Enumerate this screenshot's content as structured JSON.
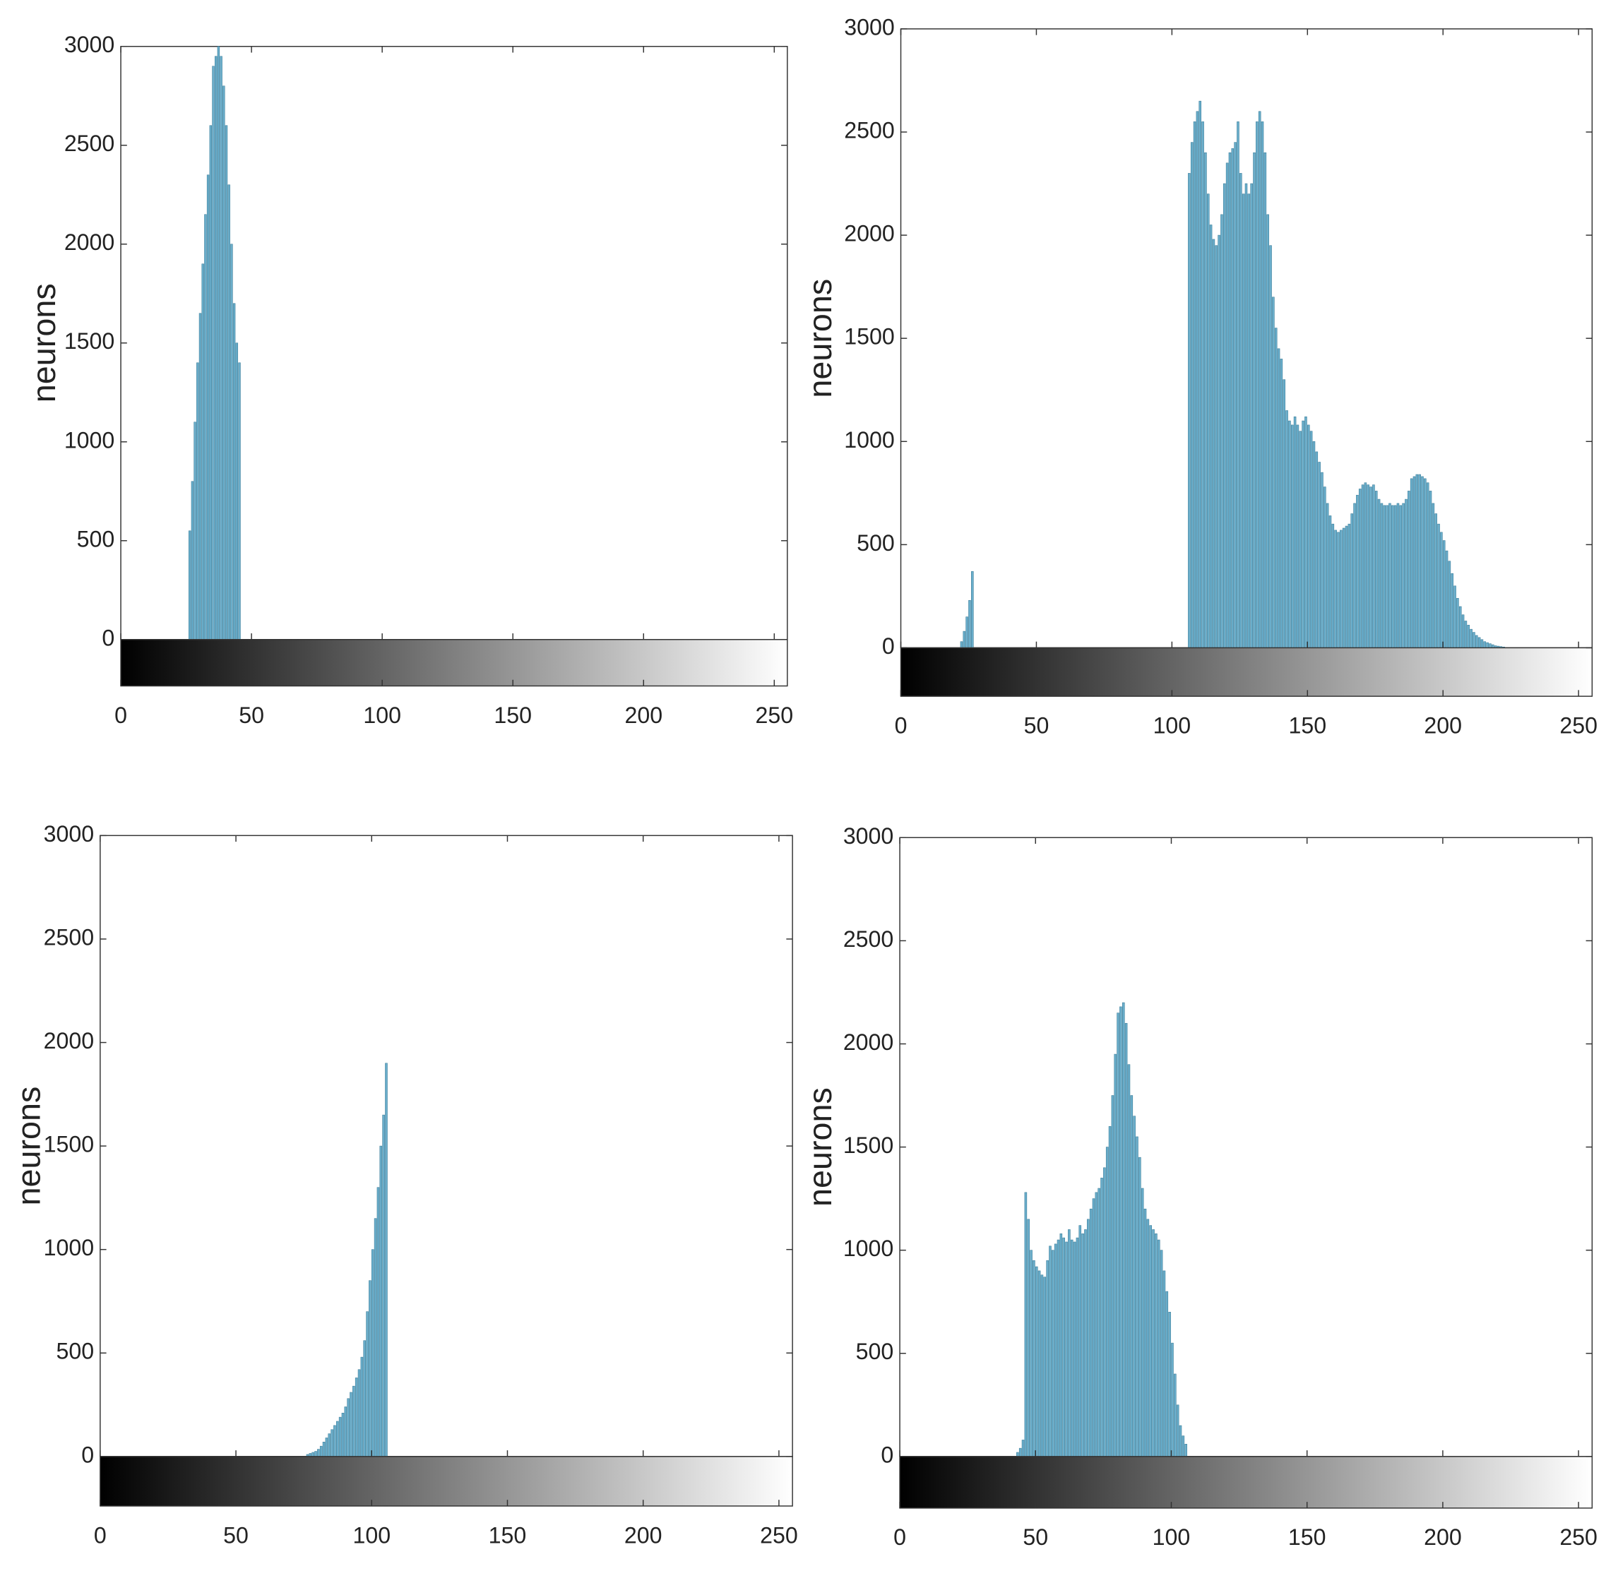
{
  "chart_data": [
    {
      "type": "histogram",
      "ylabel": "neurons",
      "color": "#6aaecb",
      "bins": [
        26,
        27,
        28,
        29,
        30,
        31,
        32,
        33,
        34,
        35,
        36,
        37,
        38,
        39,
        40,
        41,
        42,
        43,
        44,
        45,
        46
      ],
      "values": [
        550,
        800,
        1100,
        1400,
        1650,
        1900,
        2150,
        2350,
        2600,
        2900,
        2950,
        3000,
        2950,
        2800,
        2600,
        2300,
        2000,
        1700,
        1500,
        1400
      ],
      "xlim": [
        0,
        255
      ],
      "xticks": [
        0,
        50,
        100,
        150,
        200,
        250
      ],
      "ylim": [
        0,
        3000
      ],
      "yticks": [
        0,
        500,
        1000,
        1500,
        2000,
        2500,
        3000
      ]
    },
    {
      "type": "histogram",
      "ylabel": "neurons",
      "color": "#6aaecb",
      "bins": [
        22,
        23,
        24,
        25,
        26,
        27,
        106,
        107,
        108,
        109,
        110,
        111,
        112,
        113,
        114,
        115,
        116,
        117,
        118,
        119,
        120,
        121,
        122,
        123,
        124,
        125,
        126,
        127,
        128,
        129,
        130,
        131,
        132,
        133,
        134,
        135,
        136,
        137,
        138,
        139,
        140,
        141,
        142,
        143,
        144,
        145,
        146,
        147,
        148,
        149,
        150,
        151,
        152,
        153,
        154,
        155,
        156,
        157,
        158,
        159,
        160,
        161,
        162,
        163,
        164,
        165,
        166,
        167,
        168,
        169,
        170,
        171,
        172,
        173,
        174,
        175,
        176,
        177,
        178,
        179,
        180,
        181,
        182,
        183,
        184,
        185,
        186,
        187,
        188,
        189,
        190,
        191,
        192,
        193,
        194,
        195,
        196,
        197,
        198,
        199,
        200,
        201,
        202,
        203,
        204,
        205,
        206,
        207,
        208,
        209,
        210,
        211,
        212,
        213,
        214,
        215,
        216,
        217,
        218,
        219,
        220,
        221,
        222,
        223
      ],
      "values": [
        30,
        80,
        150,
        230,
        370,
        0,
        2300,
        2450,
        2550,
        2600,
        2650,
        2550,
        2400,
        2200,
        2050,
        1980,
        1950,
        2000,
        2100,
        2250,
        2350,
        2400,
        2420,
        2450,
        2550,
        2300,
        2200,
        2250,
        2200,
        2250,
        2400,
        2550,
        2600,
        2550,
        2400,
        2100,
        1950,
        1700,
        1550,
        1450,
        1400,
        1300,
        1150,
        1100,
        1080,
        1120,
        1080,
        1050,
        1100,
        1120,
        1080,
        1050,
        1000,
        950,
        900,
        850,
        780,
        700,
        640,
        600,
        570,
        560,
        570,
        580,
        590,
        600,
        650,
        700,
        740,
        770,
        790,
        800,
        790,
        780,
        790,
        760,
        720,
        700,
        690,
        690,
        700,
        690,
        690,
        700,
        690,
        700,
        720,
        760,
        820,
        830,
        840,
        840,
        830,
        820,
        800,
        760,
        700,
        650,
        600,
        560,
        520,
        470,
        420,
        360,
        300,
        240,
        200,
        160,
        130,
        110,
        90,
        75,
        60,
        50,
        40,
        30,
        25,
        20,
        15,
        10,
        8,
        6,
        4
      ],
      "xlim": [
        0,
        255
      ],
      "xticks": [
        0,
        50,
        100,
        150,
        200,
        250
      ],
      "ylim": [
        0,
        3000
      ],
      "yticks": [
        0,
        500,
        1000,
        1500,
        2000,
        2500,
        3000
      ]
    },
    {
      "type": "histogram",
      "ylabel": "neurons",
      "color": "#6aaecb",
      "bins": [
        76,
        77,
        78,
        79,
        80,
        81,
        82,
        83,
        84,
        85,
        86,
        87,
        88,
        89,
        90,
        91,
        92,
        93,
        94,
        95,
        96,
        97,
        98,
        99,
        100,
        101,
        102,
        103,
        104,
        105,
        106
      ],
      "values": [
        10,
        15,
        20,
        25,
        35,
        50,
        70,
        90,
        110,
        130,
        150,
        170,
        190,
        210,
        240,
        280,
        310,
        340,
        380,
        420,
        480,
        560,
        700,
        850,
        1000,
        1150,
        1300,
        1500,
        1650,
        1900
      ],
      "xlim": [
        0,
        255
      ],
      "xticks": [
        0,
        50,
        100,
        150,
        200,
        250
      ],
      "ylim": [
        0,
        3000
      ],
      "yticks": [
        0,
        500,
        1000,
        1500,
        2000,
        2500,
        3000
      ]
    },
    {
      "type": "histogram",
      "ylabel": "neurons",
      "color": "#6aaecb",
      "bins": [
        43,
        44,
        45,
        46,
        47,
        48,
        49,
        50,
        51,
        52,
        53,
        54,
        55,
        56,
        57,
        58,
        59,
        60,
        61,
        62,
        63,
        64,
        65,
        66,
        67,
        68,
        69,
        70,
        71,
        72,
        73,
        74,
        75,
        76,
        77,
        78,
        79,
        80,
        81,
        82,
        83,
        84,
        85,
        86,
        87,
        88,
        89,
        90,
        91,
        92,
        93,
        94,
        95,
        96,
        97,
        98,
        99,
        100,
        101,
        102,
        103,
        104,
        105,
        106
      ],
      "values": [
        20,
        40,
        80,
        1280,
        1150,
        1000,
        950,
        920,
        900,
        880,
        870,
        950,
        1020,
        1000,
        1030,
        1050,
        1080,
        1060,
        1040,
        1100,
        1050,
        1040,
        1060,
        1120,
        1080,
        1100,
        1150,
        1200,
        1250,
        1280,
        1300,
        1350,
        1400,
        1500,
        1600,
        1750,
        1950,
        2150,
        2180,
        2200,
        2100,
        1900,
        1750,
        1650,
        1550,
        1450,
        1300,
        1200,
        1150,
        1120,
        1100,
        1080,
        1050,
        1000,
        900,
        800,
        700,
        550,
        400,
        250,
        150,
        100,
        60
      ],
      "xlim": [
        0,
        255
      ],
      "xticks": [
        0,
        50,
        100,
        150,
        200,
        250
      ],
      "ylim": [
        0,
        3000
      ],
      "yticks": [
        0,
        500,
        1000,
        1500,
        2000,
        2500,
        3000
      ]
    }
  ]
}
